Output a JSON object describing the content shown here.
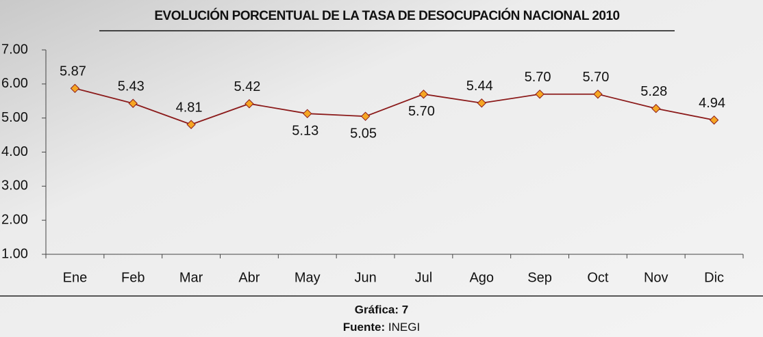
{
  "chart_data": {
    "type": "line",
    "title": "EVOLUCIÓN PORCENTUAL DE LA TASA DE DESOCUPACIÓN NACIONAL 2010",
    "categories": [
      "Ene",
      "Feb",
      "Mar",
      "Abr",
      "May",
      "Jun",
      "Jul",
      "Ago",
      "Sep",
      "Oct",
      "Nov",
      "Dic"
    ],
    "values": [
      5.87,
      5.43,
      4.81,
      5.42,
      5.13,
      5.05,
      5.7,
      5.44,
      5.7,
      5.7,
      5.28,
      4.94
    ],
    "value_labels": [
      "5.87",
      "5.43",
      "4.81",
      "5.42",
      "5.13",
      "5.05",
      "5.70",
      "5.44",
      "5.70",
      "5.70",
      "5.28",
      "4.94"
    ],
    "color": "#8b1a1a",
    "marker_color": "#f5a623",
    "ylim": [
      1,
      7
    ],
    "yticks": [
      {
        "value": 1,
        "label": "1.00"
      },
      {
        "value": 2,
        "label": "2.00"
      },
      {
        "value": 3,
        "label": "3.00"
      },
      {
        "value": 4,
        "label": "4.00"
      },
      {
        "value": 5,
        "label": "5.00"
      },
      {
        "value": 6,
        "label": "6.00"
      },
      {
        "value": 7,
        "label": "7.00"
      }
    ],
    "grid": false,
    "caption": "Gráfica: 7",
    "source_label": "Fuente:",
    "source": "INEGI"
  }
}
